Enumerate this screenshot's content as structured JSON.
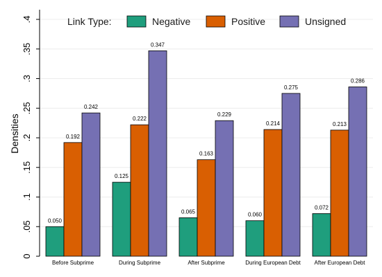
{
  "chart_data": {
    "type": "bar",
    "title": "",
    "xlabel": "",
    "ylabel": "Densities",
    "ylim": [
      0,
      0.4
    ],
    "yticks": [
      {
        "value": 0,
        "label": "0"
      },
      {
        "value": 0.05,
        "label": ".05"
      },
      {
        "value": 0.1,
        "label": ".1"
      },
      {
        "value": 0.15,
        "label": ".15"
      },
      {
        "value": 0.2,
        "label": ".2"
      },
      {
        "value": 0.25,
        "label": ".25"
      },
      {
        "value": 0.3,
        "label": ".3"
      },
      {
        "value": 0.35,
        "label": ".35"
      },
      {
        "value": 0.4,
        "label": ".4"
      }
    ],
    "grid": true,
    "legend": {
      "title": "Link Type:",
      "placement": "top"
    },
    "categories": [
      "Before Subprime",
      "During Subprime",
      "After Subprime",
      "During European Debt",
      "After European Debt"
    ],
    "series": [
      {
        "name": "Negative",
        "color": "#1f9e7d",
        "values": [
          0.05,
          0.125,
          0.065,
          0.06,
          0.072
        ],
        "labels": [
          "0.050",
          "0.125",
          "0.065",
          "0.060",
          "0.072"
        ]
      },
      {
        "name": "Positive",
        "color": "#d95f02",
        "values": [
          0.192,
          0.222,
          0.163,
          0.214,
          0.213
        ],
        "labels": [
          "0.192",
          "0.222",
          "0.163",
          "0.214",
          "0.213"
        ]
      },
      {
        "name": "Unsigned",
        "color": "#7570b3",
        "values": [
          0.242,
          0.347,
          0.229,
          0.275,
          0.286
        ],
        "labels": [
          "0.242",
          "0.347",
          "0.229",
          "0.275",
          "0.286"
        ]
      }
    ]
  }
}
